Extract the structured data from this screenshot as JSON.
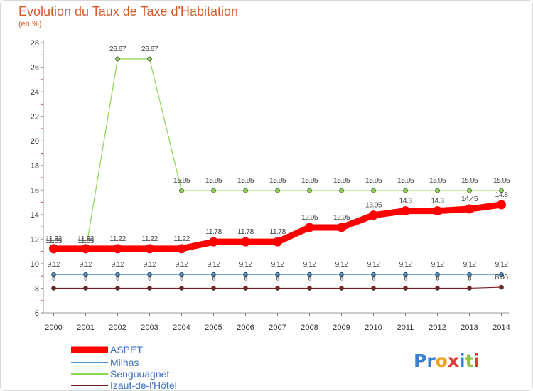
{
  "chart_data": {
    "type": "line",
    "title": "Evolution du Taux de Taxe d'Habitation",
    "ylabel": "(en %)",
    "xlabel": "",
    "ylim": [
      6,
      28
    ],
    "yticks": [
      6,
      8,
      10,
      12,
      14,
      16,
      18,
      20,
      22,
      24,
      26,
      28
    ],
    "categories": [
      "2000",
      "2001",
      "2002",
      "2003",
      "2004",
      "2005",
      "2006",
      "2007",
      "2008",
      "2009",
      "2010",
      "2011",
      "2012",
      "2013",
      "2014"
    ],
    "series": [
      {
        "name": "ASPET",
        "color": "#ff0000",
        "values": [
          11.22,
          11.22,
          11.22,
          11.22,
          11.22,
          11.78,
          11.78,
          11.78,
          12.95,
          12.95,
          13.95,
          14.3,
          14.3,
          14.45,
          14.8
        ],
        "labels": [
          "11.22",
          "11.22",
          "11.22",
          "11.22",
          "11.22",
          "11.78",
          "11.78",
          "11.78",
          "12.95",
          "12.95",
          "13.95",
          "14.3",
          "14.3",
          "14.45",
          "14.8"
        ]
      },
      {
        "name": "Milhas",
        "color": "#4a90c8",
        "values": [
          9.12,
          9.12,
          9.12,
          9.12,
          9.12,
          9.12,
          9.12,
          9.12,
          9.12,
          9.12,
          9.12,
          9.12,
          9.12,
          9.12,
          9.12
        ],
        "labels": [
          "9.12",
          "9.12",
          "9.12",
          "9.12",
          "9.12",
          "9.12",
          "9.12",
          "9.12",
          "9.12",
          "9.12",
          "9.12",
          "9.12",
          "9.12",
          "9.12",
          "9.12"
        ]
      },
      {
        "name": "Sengouagnet",
        "color": "#8ed451",
        "values": [
          11.03,
          11.03,
          26.67,
          26.67,
          15.95,
          15.95,
          15.95,
          15.95,
          15.95,
          15.95,
          15.95,
          15.95,
          15.95,
          15.95,
          15.95
        ],
        "labels": [
          "11.03",
          "11.03",
          "26.67",
          "26.67",
          "15.95",
          "15.95",
          "15.95",
          "15.95",
          "15.95",
          "15.95",
          "15.95",
          "15.95",
          "15.95",
          "15.95",
          "15.95"
        ]
      },
      {
        "name": "Izaut-de-l'Hôtel",
        "color": "#7b1f1f",
        "values": [
          8,
          8,
          8,
          8,
          8,
          8,
          8,
          8,
          8,
          8,
          8,
          8,
          8,
          8,
          8.08
        ],
        "labels": [
          "8",
          "8",
          "8",
          "8",
          "8",
          "8",
          "8",
          "8",
          "8",
          "8",
          "8",
          "8",
          "8",
          "8",
          "8.08"
        ]
      }
    ]
  },
  "brand": {
    "logo_text": "Proxiti"
  }
}
